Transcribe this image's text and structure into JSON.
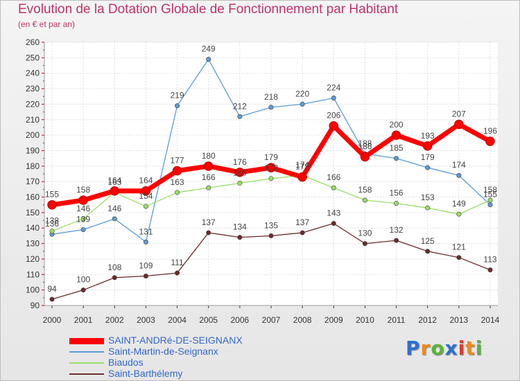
{
  "title": "Evolution de la Dotation Globale de Fonctionnement par Habitant",
  "subtitle": "(en € et par an)",
  "logo": {
    "text": "Proxiti",
    "letters": [
      {
        "ch": "P",
        "color": "#2f6fd0"
      },
      {
        "ch": "r",
        "color": "#f08a1c"
      },
      {
        "ch": "o",
        "color": "#5bb43b"
      },
      {
        "ch": "x",
        "color": "#2f6fd0"
      },
      {
        "ch": "i",
        "color": "#e03a2f"
      },
      {
        "ch": "t",
        "color": "#f08a1c"
      },
      {
        "ch": "i",
        "color": "#5bb43b"
      }
    ]
  },
  "chart_data": {
    "type": "line",
    "title": "Evolution de la Dotation Globale de Fonctionnement par Habitant",
    "subtitle": "(en € et par an)",
    "x": [
      "2000",
      "2001",
      "2002",
      "2003",
      "2004",
      "2005",
      "2006",
      "2007",
      "2008",
      "2009",
      "2010",
      "2011",
      "2012",
      "2013",
      "2014"
    ],
    "ylim": [
      90,
      260
    ],
    "yticks": [
      90,
      100,
      110,
      120,
      130,
      140,
      150,
      160,
      170,
      180,
      190,
      200,
      210,
      220,
      230,
      240,
      250,
      260
    ],
    "grid": true,
    "legend_position": "bottom-left",
    "series": [
      {
        "name": "SAINT-ANDRé-DE-SEIGNANX",
        "color": "#ff0000",
        "highlight": true,
        "values": [
          155,
          158,
          164,
          164,
          177,
          180,
          176,
          179,
          173,
          206,
          186,
          200,
          193,
          207,
          196
        ],
        "labels": [
          155,
          158,
          164,
          164,
          177,
          180,
          176,
          179,
          173,
          206,
          186,
          200,
          193,
          207,
          196
        ]
      },
      {
        "name": "Saint-Martin-de-Seignanx",
        "color": "#5b9bd5",
        "values": [
          136,
          139,
          146,
          131,
          219,
          249,
          212,
          218,
          220,
          224,
          188,
          185,
          179,
          174,
          155
        ],
        "labels": [
          136,
          139,
          146,
          131,
          219,
          249,
          212,
          218,
          220,
          224,
          188,
          185,
          179,
          174,
          155
        ]
      },
      {
        "name": "Biaudos",
        "color": "#99dd66",
        "values": [
          138,
          146,
          163,
          154,
          163,
          166,
          169,
          172,
          174,
          166,
          158,
          156,
          153,
          149,
          158
        ],
        "labels": [
          138,
          146,
          163,
          154,
          163,
          166,
          169,
          172,
          174,
          166,
          158,
          156,
          153,
          149,
          158
        ]
      },
      {
        "name": "Saint-Barthélemy",
        "color": "#6b2a2a",
        "values": [
          94,
          100,
          108,
          109,
          111,
          137,
          134,
          135,
          137,
          143,
          130,
          132,
          125,
          121,
          113
        ],
        "labels": [
          94,
          100,
          108,
          109,
          111,
          137,
          134,
          135,
          137,
          143,
          130,
          132,
          125,
          121,
          113
        ]
      }
    ]
  }
}
